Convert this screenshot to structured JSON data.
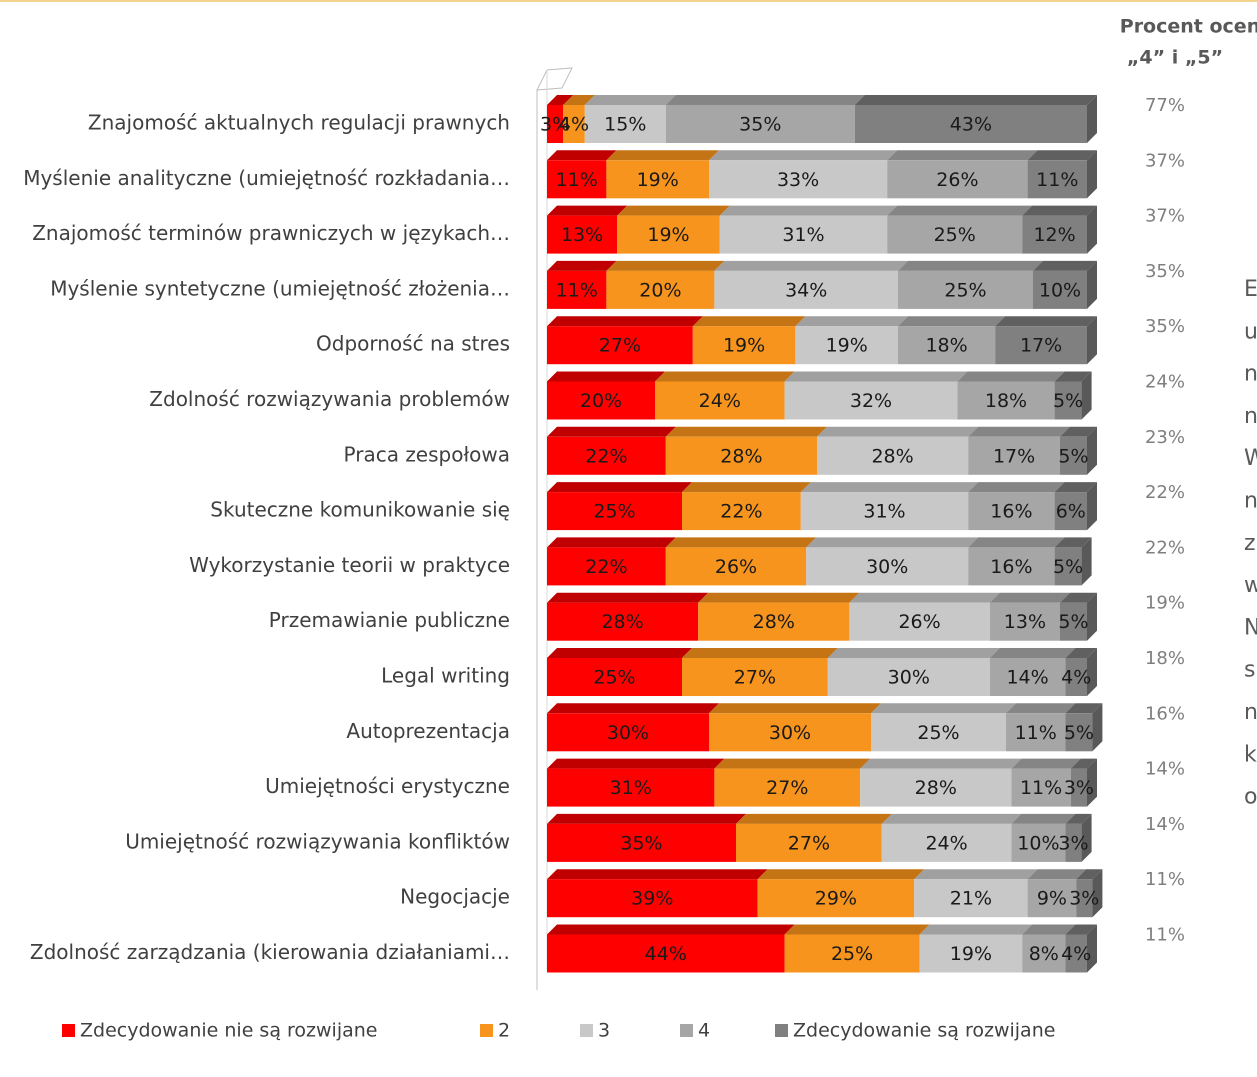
{
  "chart_data": {
    "type": "bar3d_stacked_horizontal",
    "header": [
      "Procent ocen",
      "„4” i „5”"
    ],
    "categories": [
      "Znajomość aktualnych regulacji prawnych",
      "Myślenie analityczne (umiejętność rozkładania…",
      "Znajomość terminów prawniczych w językach…",
      "Myślenie syntetyczne (umiejętność złożenia…",
      "Odporność na stres",
      "Zdolność rozwiązywania problemów",
      "Praca zespołowa",
      "Skuteczne komunikowanie się",
      "Wykorzystanie teorii w praktyce",
      "Przemawianie publiczne",
      "Legal writing",
      "Autoprezentacja",
      "Umiejętności erystyczne",
      "Umiejętność rozwiązywania konfliktów",
      "Negocjacje",
      "Zdolność zarządzania (kierowania działaniami…"
    ],
    "xlim": [
      0,
      100
    ],
    "series": [
      {
        "name": "Zdecydowanie nie są rozwijane",
        "color": "#ff0000",
        "top_color": "#c00000",
        "values": [
          3,
          11,
          13,
          11,
          27,
          20,
          22,
          25,
          22,
          28,
          25,
          30,
          31,
          35,
          39,
          44
        ],
        "value_labels": [
          "3%",
          "11%",
          "13%",
          "11%",
          "27%",
          "20%",
          "22%",
          "25%",
          "22%",
          "28%",
          "25%",
          "30%",
          "31%",
          "35%",
          "39%",
          "44%"
        ]
      },
      {
        "name": "2",
        "color": "#f7941d",
        "top_color": "#c47414",
        "values": [
          4,
          19,
          19,
          20,
          19,
          24,
          28,
          22,
          26,
          28,
          27,
          30,
          27,
          27,
          29,
          25
        ],
        "value_labels": [
          "4%",
          "19%",
          "19%",
          "20%",
          "19%",
          "24%",
          "28%",
          "22%",
          "26%",
          "28%",
          "27%",
          "30%",
          "27%",
          "27%",
          "29%",
          "25%"
        ]
      },
      {
        "name": "3",
        "color": "#c8c8c8",
        "top_color": "#a0a0a0",
        "values": [
          15,
          33,
          31,
          34,
          19,
          32,
          28,
          31,
          30,
          26,
          30,
          25,
          28,
          24,
          21,
          19
        ],
        "value_labels": [
          "15%",
          "33%",
          "31%",
          "34%",
          "19%",
          "32%",
          "28%",
          "31%",
          "30%",
          "26%",
          "30%",
          "25%",
          "28%",
          "24%",
          "21%",
          "19%"
        ]
      },
      {
        "name": "4",
        "color": "#a6a6a6",
        "top_color": "#858585",
        "values": [
          35,
          26,
          25,
          25,
          18,
          18,
          17,
          16,
          16,
          13,
          14,
          11,
          11,
          10,
          9,
          8
        ],
        "value_labels": [
          "35%",
          "26%",
          "25%",
          "25%",
          "18%",
          "18%",
          "17%",
          "16%",
          "16%",
          "13%",
          "14%",
          "11%",
          "11%",
          "10%",
          "9%",
          "8%"
        ]
      },
      {
        "name": "Zdecydowanie są rozwijane",
        "color": "#808080",
        "top_color": "#606060",
        "values": [
          43,
          11,
          12,
          10,
          17,
          5,
          5,
          6,
          5,
          5,
          4,
          5,
          3,
          3,
          3,
          4
        ],
        "value_labels": [
          "43%",
          "11%",
          "12%",
          "10%",
          "17%",
          "5%",
          "5%",
          "6%",
          "5%",
          "5%",
          "4%",
          "5%",
          "3%",
          "3%",
          "3%",
          "4%"
        ]
      }
    ],
    "top_box": {
      "values": [
        77,
        37,
        37,
        35,
        35,
        24,
        23,
        22,
        22,
        19,
        18,
        16,
        14,
        14,
        11,
        11
      ],
      "value_labels": [
        "77%",
        "37%",
        "37%",
        "35%",
        "35%",
        "24%",
        "23%",
        "22%",
        "22%",
        "19%",
        "18%",
        "16%",
        "14%",
        "14%",
        "11%",
        "11%"
      ]
    },
    "side_text_fragments": [
      "E",
      "u",
      "n",
      "n",
      "W",
      "n",
      "z",
      "w",
      "N",
      "s",
      "n",
      "k",
      "o"
    ]
  }
}
